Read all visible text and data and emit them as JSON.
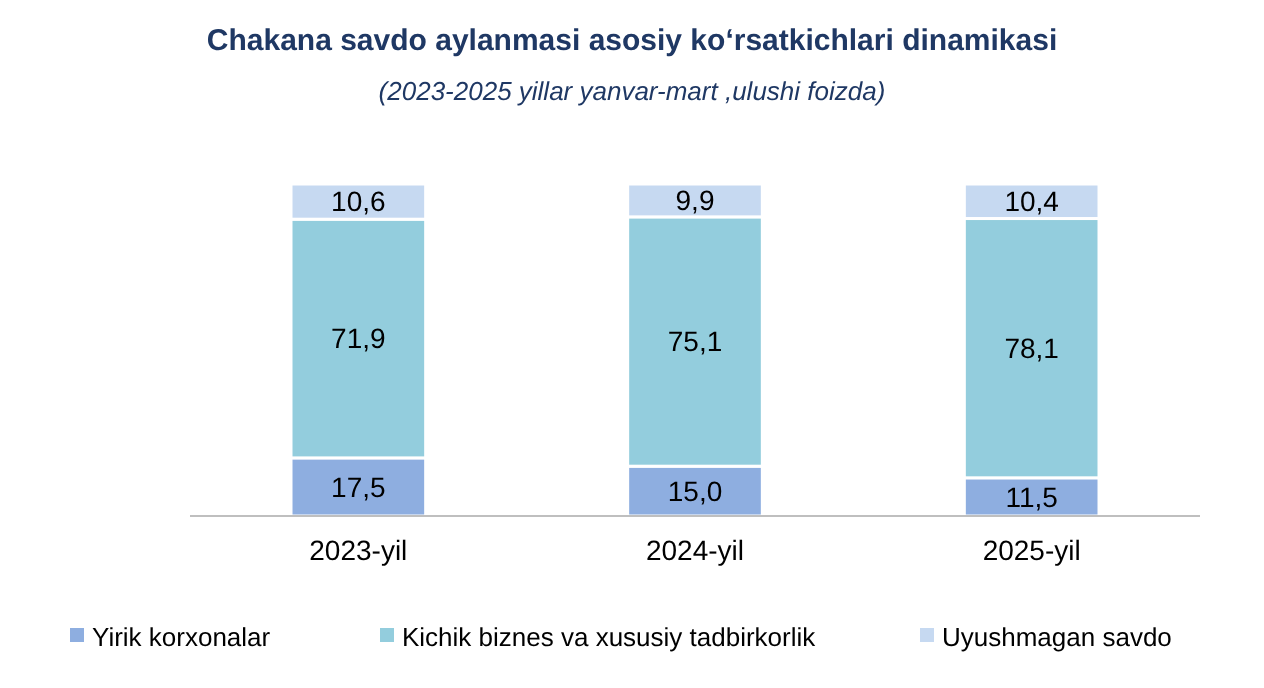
{
  "chart_data": {
    "type": "bar",
    "title": "Chakana savdo aylanmasi asosiy ko‘rsatkichlari dinamikasi",
    "subtitle": "(2023-2025 yillar yanvar-mart ,ulushi foizda)",
    "categories": [
      "2023-yil",
      "2024-yil",
      "2025-yil"
    ],
    "stacked": true,
    "legend": "bottom",
    "series": [
      {
        "name": "Yirik korxonalar",
        "color": "#8eaee0",
        "values": [
          17.5,
          15.0,
          11.5
        ],
        "value_labels": [
          "17,5",
          "15,0",
          "11,5"
        ]
      },
      {
        "name": "Kichik biznes va xususiy tadbirkorlik",
        "color": "#93cddd",
        "values": [
          71.9,
          75.1,
          78.1
        ],
        "value_labels": [
          "71,9",
          "75,1",
          "78,1"
        ]
      },
      {
        "name": "Uyushmagan savdo",
        "color": "#c6d9f1",
        "values": [
          10.6,
          9.9,
          10.4
        ],
        "value_labels": [
          "10,6",
          "9,9",
          "10,4"
        ]
      }
    ]
  }
}
